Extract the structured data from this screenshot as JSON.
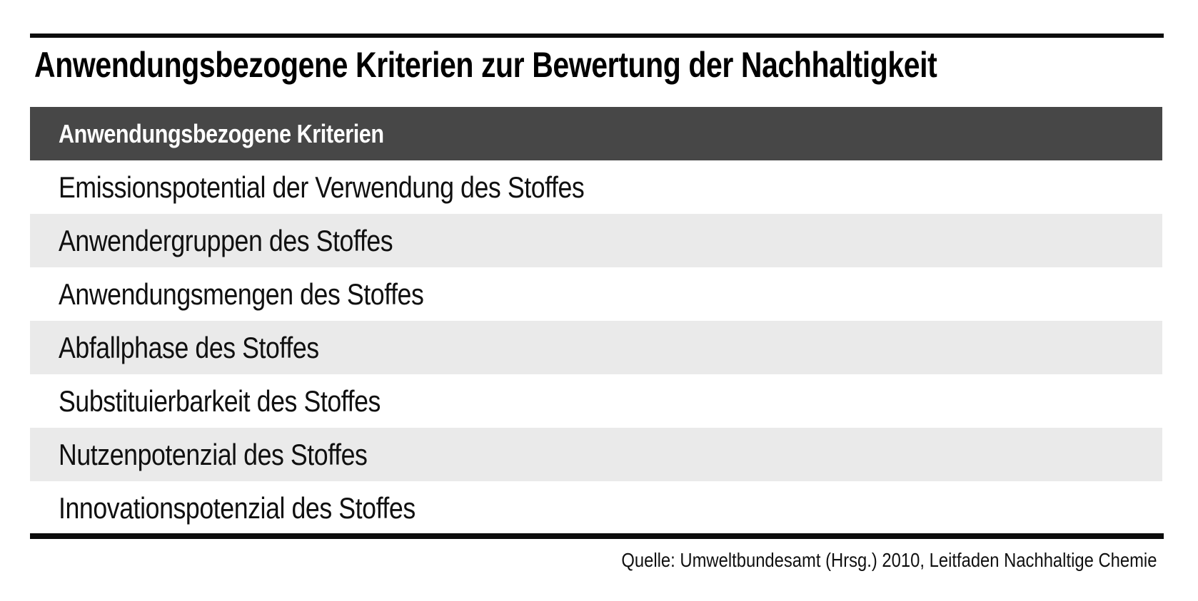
{
  "page": {
    "title": "Anwendungsbezogene Kriterien zur Bewertung der Nachhaltigkeit",
    "source_note": "Quelle: Umweltbundesamt (Hrsg.) 2010, Leitfaden Nachhaltige Chemie"
  },
  "table": {
    "header": "Anwendungsbezogene Kriterien",
    "rows": [
      "Emissionspotential der Verwendung des Stoffes",
      "Anwendergruppen des Stoffes",
      "Anwendungsmengen des Stoffes",
      "Abfallphase des Stoffes",
      "Substituierbarkeit des Stoffes",
      "Nutzenpotenzial des Stoffes",
      "Innovationspotenzial des Stoffes"
    ]
  },
  "colors": {
    "header_bg": "#474747",
    "header_text": "#ffffff",
    "row_bg": "#ffffff",
    "row_alt_bg": "#eaeaea",
    "rule": "#0c0c0c",
    "text": "#101010",
    "title_text": "#000000"
  }
}
